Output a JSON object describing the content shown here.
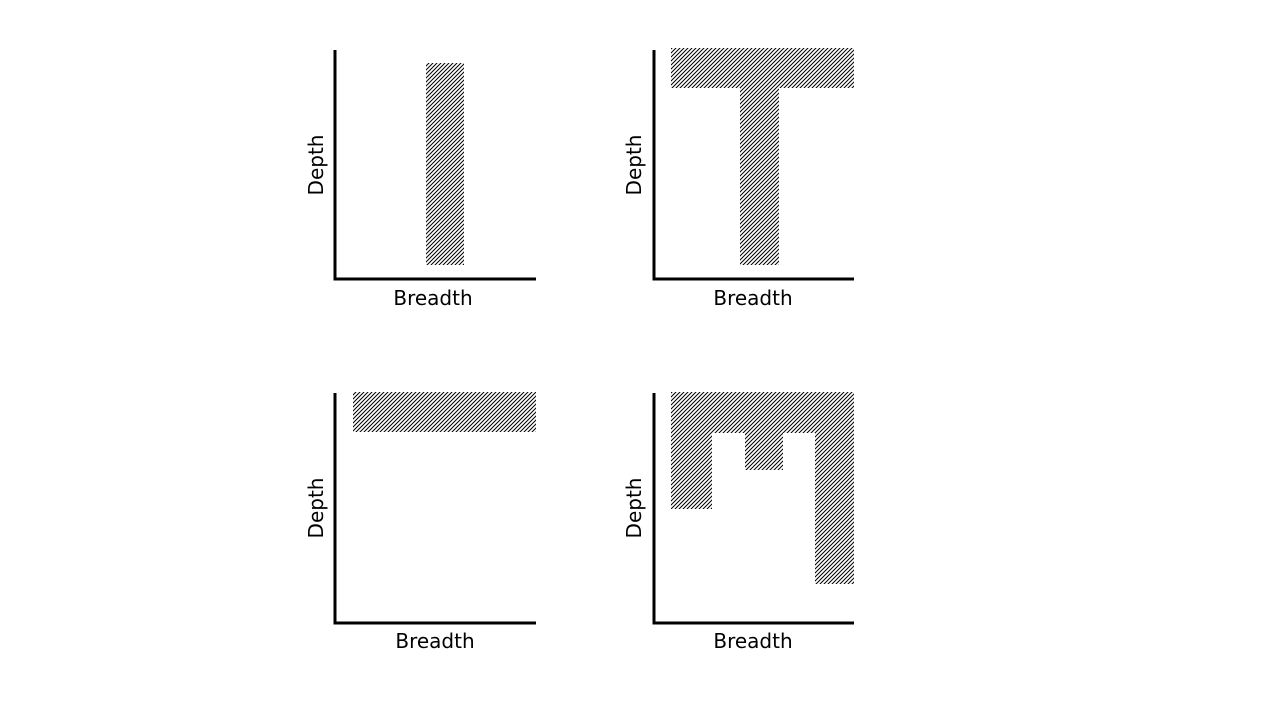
{
  "diagrams": [
    {
      "xlabel": "Breadth",
      "ylabel": "Depth",
      "shape": "deep and narrow (single vertical column)"
    },
    {
      "xlabel": "Breadth",
      "ylabel": "Depth",
      "shape": "T-shaped (broad top bar with one deep column)"
    },
    {
      "xlabel": "Breadth",
      "ylabel": "Depth",
      "shape": "broad and shallow (single horizontal bar)"
    },
    {
      "xlabel": "Breadth",
      "ylabel": "Depth",
      "shape": "comb-shaped (broad top bar with several columns of varying depth)"
    }
  ],
  "style": {
    "axis_color": "#000000",
    "hatch_color": "#000000",
    "background": "#ffffff"
  }
}
